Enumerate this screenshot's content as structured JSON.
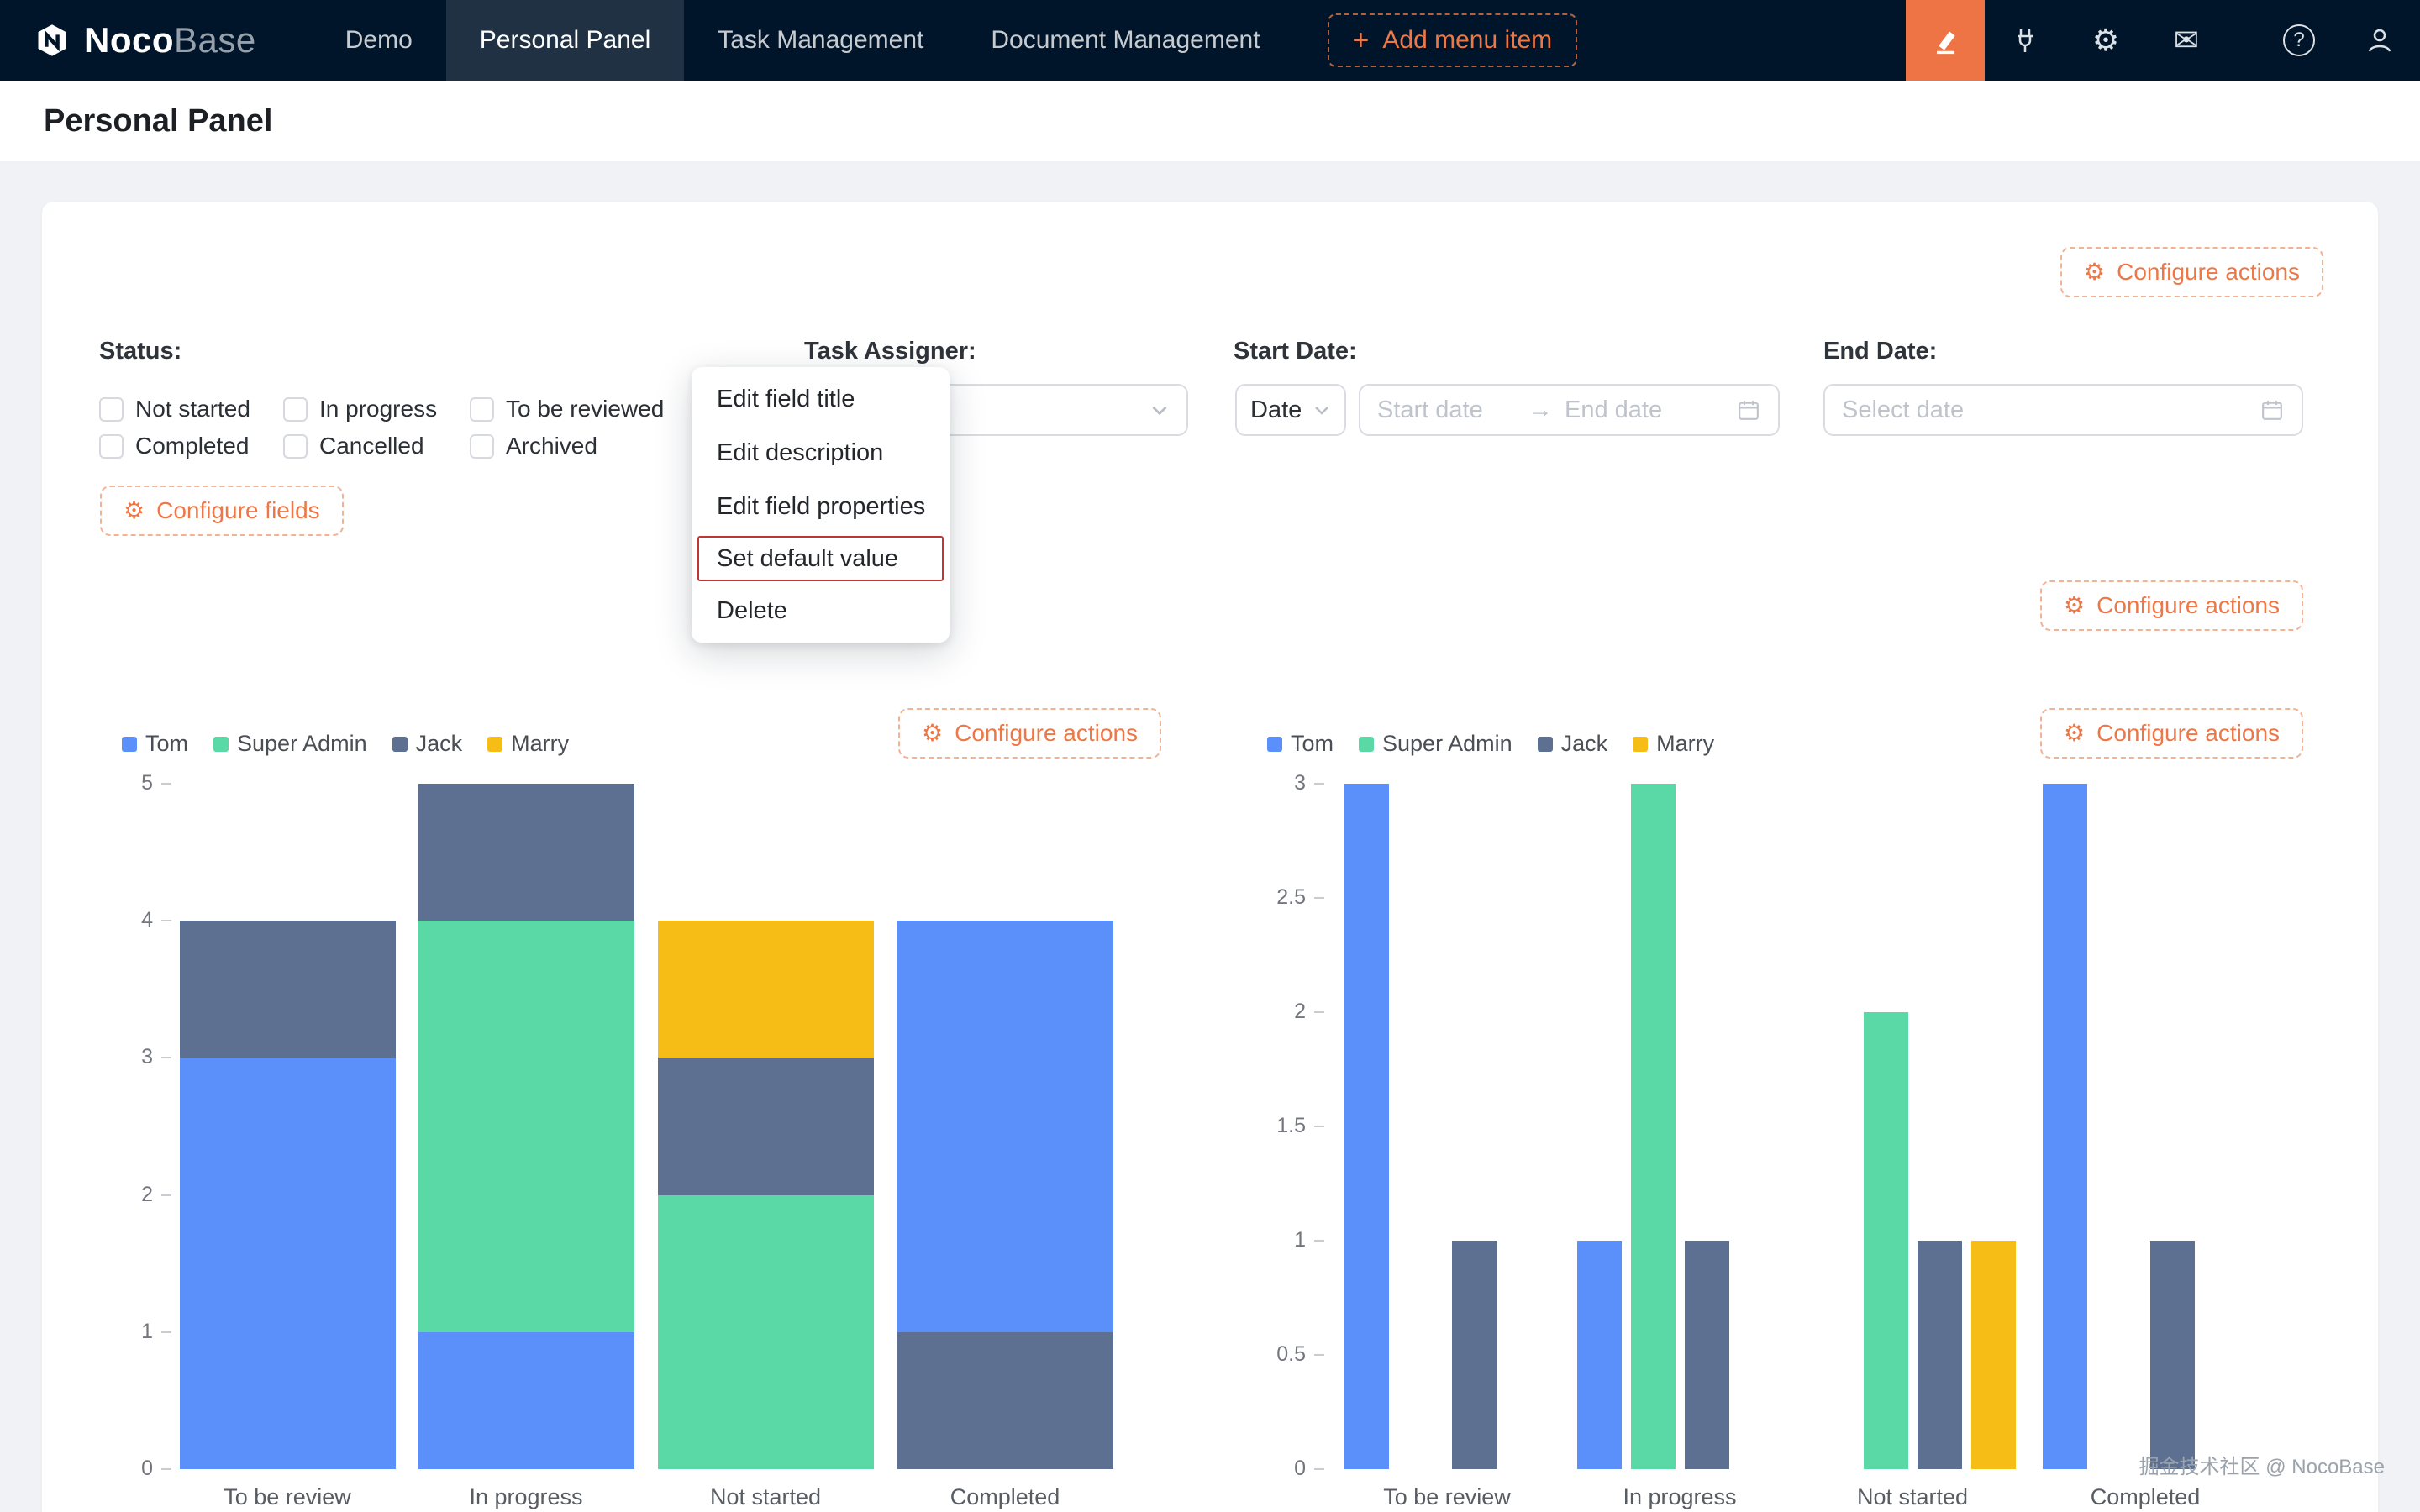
{
  "nav": {
    "logo": {
      "bold": "Noco",
      "light": "Base"
    },
    "items": [
      {
        "label": "Demo",
        "active": false
      },
      {
        "label": "Personal Panel",
        "active": true
      },
      {
        "label": "Task Management",
        "active": false
      },
      {
        "label": "Document Management",
        "active": false
      }
    ],
    "add_menu_item": "Add menu item"
  },
  "page": {
    "title": "Personal Panel"
  },
  "labels": {
    "configure_actions": "Configure actions",
    "configure_fields": "Configure fields"
  },
  "filters": {
    "status": {
      "label": "Status:",
      "rows": [
        [
          "Not started",
          "In progress",
          "To be reviewed"
        ],
        [
          "Completed",
          "Cancelled",
          "Archived"
        ]
      ]
    },
    "task_assigner": {
      "label": "Task Assigner:"
    },
    "start_date": {
      "label": "Start Date:",
      "mode": "Date",
      "start_placeholder": "Start date",
      "end_placeholder": "End date"
    },
    "end_date": {
      "label": "End Date:",
      "placeholder": "Select date"
    }
  },
  "context_menu": {
    "items": [
      "Edit field title",
      "Edit description",
      "Edit field properties",
      "Set default value",
      "Delete"
    ],
    "highlighted": "Set default value"
  },
  "watermark": "掘金技术社区 @ NocoBase",
  "colors": {
    "accent": "#ED7747",
    "nav_bg": "#001529",
    "danger": "#C23535",
    "tom": "#5B8FF9",
    "super_admin": "#5AD8A6",
    "jack": "#5D7092",
    "marry": "#F6BD16"
  },
  "chart_data": [
    {
      "type": "bar",
      "variant": "stacked",
      "title": "",
      "categories": [
        "To be review",
        "In progress",
        "Not started",
        "Completed"
      ],
      "series": [
        {
          "name": "Tom",
          "color": "#5B8FF9",
          "values": [
            3,
            1,
            0,
            3
          ]
        },
        {
          "name": "Super Admin",
          "color": "#5AD8A6",
          "values": [
            0,
            3,
            2,
            0
          ]
        },
        {
          "name": "Jack",
          "color": "#5D7092",
          "values": [
            1,
            1,
            1,
            1
          ]
        },
        {
          "name": "Marry",
          "color": "#F6BD16",
          "values": [
            0,
            0,
            1,
            0
          ]
        }
      ],
      "stack_order_bottom_to_top": [
        [
          "Tom",
          "Jack"
        ],
        [
          "Tom",
          "Super Admin",
          "Jack"
        ],
        [
          "Super Admin",
          "Jack",
          "Marry"
        ],
        [
          "Jack",
          "Tom"
        ]
      ],
      "ylim": [
        0,
        5
      ],
      "yticks": [
        0,
        1,
        2,
        3,
        4,
        5
      ],
      "grid": false,
      "legend_position": "top-left"
    },
    {
      "type": "bar",
      "variant": "grouped",
      "title": "",
      "categories": [
        "To be review",
        "In progress",
        "Not started",
        "Completed"
      ],
      "series": [
        {
          "name": "Tom",
          "color": "#5B8FF9",
          "values": [
            3,
            1,
            0,
            3
          ]
        },
        {
          "name": "Super Admin",
          "color": "#5AD8A6",
          "values": [
            0,
            3,
            2,
            0
          ]
        },
        {
          "name": "Jack",
          "color": "#5D7092",
          "values": [
            1,
            1,
            1,
            1
          ]
        },
        {
          "name": "Marry",
          "color": "#F6BD16",
          "values": [
            0,
            0,
            1,
            0
          ]
        }
      ],
      "ylim": [
        0,
        3
      ],
      "yticks": [
        0,
        0.5,
        1,
        1.5,
        2,
        2.5,
        3
      ],
      "grid": false,
      "legend_position": "top-left"
    }
  ]
}
